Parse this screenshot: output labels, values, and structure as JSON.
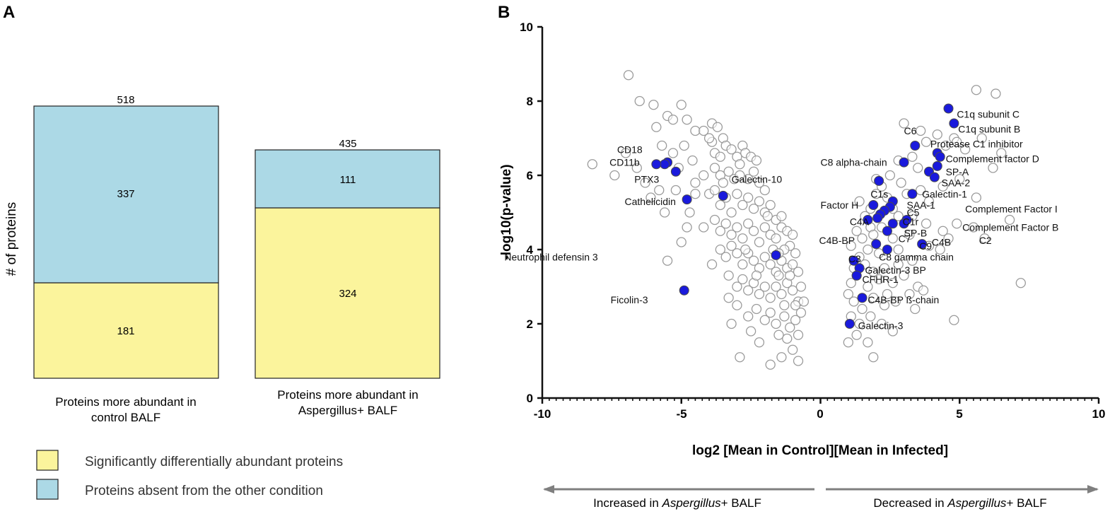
{
  "panel_labels": {
    "a": "A",
    "b": "B"
  },
  "colors": {
    "yellow": "#fbf49c",
    "blue": "#acd9e6",
    "highlight": "#1a1adc",
    "open_marker": "#9a9a9a",
    "arrow": "#7f7f7f"
  },
  "chart_data": [
    {
      "type": "bar",
      "stacked": true,
      "ylabel": "# of proteins",
      "categories": [
        "Proteins more abundant in control BALF",
        "Proteins more abundant in Aspergillus+ BALF"
      ],
      "category_lines": [
        [
          "Proteins more abundant in",
          "control BALF"
        ],
        [
          "Proteins more abundant in",
          "Aspergillus+ BALF"
        ]
      ],
      "series": [
        {
          "name": "Significantly differentially abundant proteins",
          "values": [
            181,
            324
          ],
          "color": "#fbf49c"
        },
        {
          "name": "Proteins absent from the other condition",
          "values": [
            337,
            111
          ],
          "color": "#acd9e6"
        }
      ],
      "totals": [
        518,
        435
      ],
      "ylim": [
        0,
        600
      ],
      "legend_position": "bottom-left"
    },
    {
      "type": "scatter",
      "xlabel": "log2 [Mean in Control][Mean in Infected]",
      "ylabel": "-log10(p-value)",
      "xlim": [
        -10,
        10
      ],
      "ylim": [
        0,
        10
      ],
      "xticks": [
        -10,
        -5,
        0,
        5,
        10
      ],
      "yticks": [
        0,
        2,
        4,
        6,
        8,
        10
      ],
      "annotations": {
        "left_arrow": {
          "prefix": "Increased in ",
          "italic": "Aspergillus",
          "suffix": "+ BALF"
        },
        "right_arrow": {
          "prefix": "Decreased in ",
          "italic": "Aspergillus",
          "suffix": "+ BALF"
        }
      },
      "highlighted": [
        {
          "x": 4.6,
          "y": 7.8,
          "label": "C1q  subunit C",
          "lx": 4.9,
          "ly": 7.65
        },
        {
          "x": 4.8,
          "y": 7.4,
          "label": "C1q subunit B",
          "lx": 4.95,
          "ly": 7.25
        },
        {
          "x": 3.4,
          "y": 6.8,
          "label": "C6",
          "lx": 3.0,
          "ly": 7.2
        },
        {
          "x": 4.2,
          "y": 6.6,
          "label": "Protease C1 inhibitor",
          "lx": 3.95,
          "ly": 6.85
        },
        {
          "x": 4.3,
          "y": 6.5,
          "label": "Complement factor D",
          "lx": 4.5,
          "ly": 6.45
        },
        {
          "x": 3.0,
          "y": 6.35,
          "label": "C8 alpha-chain",
          "lx": 0.0,
          "ly": 6.35
        },
        {
          "x": 4.2,
          "y": 6.25,
          "label": "SP-A",
          "lx": 4.5,
          "ly": 6.1
        },
        {
          "x": 3.9,
          "y": 6.1,
          "label": "SAA-2",
          "lx": 4.35,
          "ly": 5.8
        },
        {
          "x": 4.1,
          "y": 5.95,
          "label": "",
          "lx": 0,
          "ly": 0
        },
        {
          "x": 2.1,
          "y": 5.85,
          "label": "",
          "lx": 0,
          "ly": 0
        },
        {
          "x": 3.3,
          "y": 5.5,
          "label": "Galectin-1",
          "lx": 3.65,
          "ly": 5.5
        },
        {
          "x": 2.6,
          "y": 5.3,
          "label": "SAA-1",
          "lx": 3.1,
          "ly": 5.2
        },
        {
          "x": 2.5,
          "y": 5.15,
          "label": "C1s",
          "lx": 1.8,
          "ly": 5.5
        },
        {
          "x": 1.9,
          "y": 5.2,
          "label": "Factor H",
          "lx": 0.0,
          "ly": 5.2
        },
        {
          "x": 2.3,
          "y": 5.05,
          "label": "C5",
          "lx": 3.1,
          "ly": 5.0
        },
        {
          "x": 2.15,
          "y": 4.95,
          "label": "",
          "lx": 0,
          "ly": 0
        },
        {
          "x": 2.05,
          "y": 4.85,
          "label": "",
          "lx": 0,
          "ly": 0
        },
        {
          "x": 1.7,
          "y": 4.8,
          "label": "C4A",
          "lx": 1.05,
          "ly": 4.75
        },
        {
          "x": 3.1,
          "y": 4.8,
          "label": "C1r",
          "lx": 2.95,
          "ly": 4.75
        },
        {
          "x": 2.6,
          "y": 4.7,
          "label": "SP-B",
          "lx": 3.0,
          "ly": 4.45
        },
        {
          "x": 3.0,
          "y": 4.7,
          "label": "",
          "lx": 0,
          "ly": 0
        },
        {
          "x": 2.4,
          "y": 4.5,
          "label": "C7",
          "lx": 2.8,
          "ly": 4.3
        },
        {
          "x": 2.0,
          "y": 4.15,
          "label": "C4B-BP",
          "lx": -0.05,
          "ly": 4.25
        },
        {
          "x": 3.65,
          "y": 4.15,
          "label": "C9",
          "lx": 3.55,
          "ly": 4.1
        },
        {
          "x": 2.4,
          "y": 4.0,
          "label": "C8 gamma chain",
          "lx": 2.1,
          "ly": 3.8
        },
        {
          "x": 1.2,
          "y": 3.7,
          "label": "C3",
          "lx": 1.0,
          "ly": 3.75
        },
        {
          "x": 1.4,
          "y": 3.5,
          "label": "Galectin-3 BP",
          "lx": 1.6,
          "ly": 3.45
        },
        {
          "x": 1.3,
          "y": 3.3,
          "label": "CFHR-1",
          "lx": 1.5,
          "ly": 3.2
        },
        {
          "x": 1.5,
          "y": 2.7,
          "label": "C4B-BP ß-chain",
          "lx": 1.7,
          "ly": 2.65
        },
        {
          "x": 1.05,
          "y": 2.0,
          "label": "Galectin-3",
          "lx": 1.35,
          "ly": 1.95
        },
        {
          "x": -5.5,
          "y": 6.35,
          "label": "CD18",
          "lx": -6.4,
          "ly": 6.7
        },
        {
          "x": -5.6,
          "y": 6.3,
          "label": "CD11b",
          "lx": -6.5,
          "ly": 6.35
        },
        {
          "x": -5.2,
          "y": 6.1,
          "label": "PTX3",
          "lx": -5.8,
          "ly": 5.9
        },
        {
          "x": -5.9,
          "y": 6.3,
          "label": "",
          "lx": 0,
          "ly": 0
        },
        {
          "x": -3.5,
          "y": 5.45,
          "label": "Galectin-10",
          "lx": -3.2,
          "ly": 5.9
        },
        {
          "x": -4.8,
          "y": 5.35,
          "label": "Cathelicidin",
          "lx": -5.2,
          "ly": 5.3
        },
        {
          "x": -1.6,
          "y": 3.85,
          "label": "Neutrophil defensin 3",
          "lx": -8.0,
          "ly": 3.8
        },
        {
          "x": -4.9,
          "y": 2.9,
          "label": "Ficolin-3",
          "lx": -6.2,
          "ly": 2.65
        }
      ],
      "extra_labels": [
        {
          "label": "Complement Factor I",
          "lx": 5.2,
          "ly": 5.1
        },
        {
          "label": "Complement Factor B",
          "lx": 5.1,
          "ly": 4.6
        },
        {
          "label": "C4B",
          "lx": 4.0,
          "ly": 4.2
        },
        {
          "label": "C2",
          "lx": 5.7,
          "ly": 4.25
        }
      ],
      "points_left": [
        [
          -6.9,
          8.7
        ],
        [
          -8.2,
          6.3
        ],
        [
          -7.0,
          6.6
        ],
        [
          -6.5,
          8.0
        ],
        [
          -6.0,
          7.9
        ],
        [
          -5.9,
          7.3
        ],
        [
          -5.7,
          6.8
        ],
        [
          -5.5,
          7.6
        ],
        [
          -5.3,
          7.5
        ],
        [
          -5.0,
          7.9
        ],
        [
          -4.8,
          7.5
        ],
        [
          -4.5,
          7.2
        ],
        [
          -4.2,
          7.2
        ],
        [
          -3.9,
          7.4
        ],
        [
          -3.5,
          7.0
        ],
        [
          -6.3,
          5.8
        ],
        [
          -6.1,
          5.4
        ],
        [
          -5.8,
          5.6
        ],
        [
          -5.6,
          5.0
        ],
        [
          -5.3,
          6.6
        ],
        [
          -5.1,
          6.2
        ],
        [
          -4.9,
          6.8
        ],
        [
          -4.6,
          6.4
        ],
        [
          -4.7,
          5.0
        ],
        [
          -4.5,
          5.8
        ],
        [
          -4.2,
          6.0
        ],
        [
          -4.0,
          5.5
        ],
        [
          -5.0,
          4.2
        ],
        [
          -5.5,
          3.7
        ],
        [
          -4.8,
          4.6
        ],
        [
          -3.9,
          6.9
        ],
        [
          -3.8,
          6.6
        ],
        [
          -3.6,
          6.5
        ],
        [
          -3.4,
          6.8
        ],
        [
          -3.2,
          6.7
        ],
        [
          -3.0,
          6.5
        ],
        [
          -2.8,
          6.8
        ],
        [
          -2.7,
          6.6
        ],
        [
          -2.5,
          6.5
        ],
        [
          -2.3,
          6.4
        ],
        [
          -3.8,
          6.2
        ],
        [
          -3.6,
          6.0
        ],
        [
          -3.5,
          5.8
        ],
        [
          -3.3,
          6.1
        ],
        [
          -3.1,
          5.9
        ],
        [
          -2.9,
          6.0
        ],
        [
          -2.6,
          5.9
        ],
        [
          -2.4,
          6.1
        ],
        [
          -2.2,
          5.8
        ],
        [
          -2.0,
          5.6
        ],
        [
          -3.8,
          5.6
        ],
        [
          -3.6,
          5.2
        ],
        [
          -3.4,
          5.4
        ],
        [
          -3.2,
          5.0
        ],
        [
          -3.0,
          5.5
        ],
        [
          -2.8,
          5.2
        ],
        [
          -2.6,
          5.4
        ],
        [
          -2.4,
          5.1
        ],
        [
          -2.2,
          5.3
        ],
        [
          -2.0,
          5.0
        ],
        [
          -1.8,
          5.2
        ],
        [
          -1.6,
          4.8
        ],
        [
          -1.4,
          4.9
        ],
        [
          -3.8,
          4.8
        ],
        [
          -3.6,
          4.5
        ],
        [
          -3.4,
          4.7
        ],
        [
          -3.2,
          4.4
        ],
        [
          -3.0,
          4.6
        ],
        [
          -2.8,
          4.3
        ],
        [
          -2.6,
          4.7
        ],
        [
          -2.4,
          4.5
        ],
        [
          -2.2,
          4.2
        ],
        [
          -2.0,
          4.6
        ],
        [
          -1.8,
          4.4
        ],
        [
          -1.6,
          4.3
        ],
        [
          -1.4,
          4.6
        ],
        [
          -1.2,
          4.5
        ],
        [
          -1.0,
          4.4
        ],
        [
          -3.6,
          4.0
        ],
        [
          -3.4,
          3.8
        ],
        [
          -3.2,
          4.1
        ],
        [
          -3.0,
          3.9
        ],
        [
          -2.8,
          3.6
        ],
        [
          -2.6,
          3.9
        ],
        [
          -2.4,
          3.7
        ],
        [
          -2.2,
          3.5
        ],
        [
          -2.0,
          3.8
        ],
        [
          -1.8,
          3.6
        ],
        [
          -1.6,
          3.4
        ],
        [
          -1.4,
          3.7
        ],
        [
          -1.2,
          3.5
        ],
        [
          -1.0,
          3.6
        ],
        [
          -0.8,
          3.4
        ],
        [
          -0.9,
          3.9
        ],
        [
          -1.1,
          4.1
        ],
        [
          -1.3,
          4.0
        ],
        [
          -3.3,
          3.3
        ],
        [
          -3.0,
          3.0
        ],
        [
          -2.8,
          3.2
        ],
        [
          -2.6,
          2.9
        ],
        [
          -2.4,
          3.1
        ],
        [
          -2.2,
          2.8
        ],
        [
          -2.0,
          3.0
        ],
        [
          -1.8,
          2.7
        ],
        [
          -1.6,
          3.0
        ],
        [
          -1.4,
          2.8
        ],
        [
          -1.2,
          3.1
        ],
        [
          -1.0,
          2.9
        ],
        [
          -0.8,
          2.6
        ],
        [
          -0.7,
          3.0
        ],
        [
          -1.5,
          3.3
        ],
        [
          -1.1,
          3.3
        ],
        [
          -3.0,
          2.5
        ],
        [
          -2.6,
          2.2
        ],
        [
          -2.3,
          2.4
        ],
        [
          -2.0,
          2.1
        ],
        [
          -1.8,
          2.3
        ],
        [
          -1.6,
          2.0
        ],
        [
          -1.3,
          2.2
        ],
        [
          -1.1,
          1.9
        ],
        [
          -0.9,
          2.1
        ],
        [
          -0.7,
          2.3
        ],
        [
          -0.8,
          1.7
        ],
        [
          -1.2,
          1.6
        ],
        [
          -1.5,
          1.7
        ],
        [
          -2.2,
          1.5
        ],
        [
          -2.5,
          1.8
        ],
        [
          -3.2,
          2.0
        ],
        [
          -1.0,
          1.3
        ],
        [
          -1.4,
          1.1
        ],
        [
          -1.8,
          0.9
        ],
        [
          -0.8,
          1.0
        ],
        [
          -2.9,
          1.1
        ],
        [
          -4.2,
          4.6
        ],
        [
          -4.5,
          5.5
        ],
        [
          -5.2,
          5.6
        ],
        [
          -6.6,
          6.2
        ],
        [
          -7.4,
          6.0
        ],
        [
          -3.9,
          3.6
        ],
        [
          -3.3,
          2.7
        ],
        [
          -4.0,
          7.0
        ],
        [
          -3.7,
          7.3
        ],
        [
          -2.9,
          6.3
        ],
        [
          -1.9,
          4.9
        ],
        [
          -1.7,
          4.0
        ],
        [
          -1.5,
          3.9
        ],
        [
          -2.7,
          4.0
        ],
        [
          -2.3,
          3.3
        ],
        [
          -1.3,
          2.5
        ],
        [
          -0.9,
          2.5
        ],
        [
          -0.6,
          2.6
        ]
      ],
      "points_right": [
        [
          5.6,
          8.3
        ],
        [
          6.3,
          8.2
        ],
        [
          5.8,
          7.0
        ],
        [
          6.5,
          6.6
        ],
        [
          6.2,
          6.2
        ],
        [
          4.8,
          7.0
        ],
        [
          4.2,
          7.1
        ],
        [
          3.6,
          7.2
        ],
        [
          3.0,
          7.4
        ],
        [
          5.2,
          6.7
        ],
        [
          4.9,
          6.9
        ],
        [
          4.5,
          6.8
        ],
        [
          3.8,
          6.9
        ],
        [
          3.3,
          6.5
        ],
        [
          2.8,
          6.4
        ],
        [
          3.5,
          6.2
        ],
        [
          2.5,
          6.0
        ],
        [
          2.2,
          5.7
        ],
        [
          2.9,
          5.8
        ],
        [
          3.6,
          5.6
        ],
        [
          2.0,
          5.5
        ],
        [
          2.4,
          5.4
        ],
        [
          1.8,
          5.1
        ],
        [
          2.6,
          5.1
        ],
        [
          3.1,
          5.5
        ],
        [
          3.9,
          5.3
        ],
        [
          4.4,
          5.7
        ],
        [
          5.0,
          5.9
        ],
        [
          5.6,
          5.4
        ],
        [
          1.6,
          4.9
        ],
        [
          1.8,
          4.6
        ],
        [
          2.2,
          4.6
        ],
        [
          2.8,
          4.9
        ],
        [
          3.3,
          4.9
        ],
        [
          3.8,
          4.7
        ],
        [
          4.4,
          4.5
        ],
        [
          4.9,
          4.7
        ],
        [
          1.5,
          4.3
        ],
        [
          1.9,
          4.4
        ],
        [
          2.6,
          4.3
        ],
        [
          3.2,
          4.4
        ],
        [
          3.9,
          4.1
        ],
        [
          1.7,
          4.0
        ],
        [
          2.1,
          3.9
        ],
        [
          2.8,
          4.0
        ],
        [
          1.2,
          3.5
        ],
        [
          1.4,
          3.8
        ],
        [
          1.6,
          3.6
        ],
        [
          1.9,
          3.4
        ],
        [
          2.3,
          3.5
        ],
        [
          2.8,
          3.6
        ],
        [
          3.3,
          3.7
        ],
        [
          1.1,
          3.1
        ],
        [
          1.3,
          3.3
        ],
        [
          1.7,
          3.0
        ],
        [
          2.1,
          3.2
        ],
        [
          2.6,
          3.1
        ],
        [
          3.0,
          3.3
        ],
        [
          3.5,
          3.0
        ],
        [
          1.0,
          2.8
        ],
        [
          1.2,
          2.6
        ],
        [
          1.5,
          2.4
        ],
        [
          1.9,
          2.7
        ],
        [
          2.3,
          2.5
        ],
        [
          2.7,
          2.6
        ],
        [
          3.2,
          2.8
        ],
        [
          3.7,
          2.9
        ],
        [
          1.1,
          2.2
        ],
        [
          1.4,
          2.0
        ],
        [
          1.8,
          2.2
        ],
        [
          2.2,
          2.0
        ],
        [
          2.6,
          1.8
        ],
        [
          1.3,
          1.7
        ],
        [
          1.7,
          1.5
        ],
        [
          1.0,
          1.5
        ],
        [
          1.9,
          1.1
        ],
        [
          4.8,
          2.1
        ],
        [
          7.2,
          3.1
        ],
        [
          6.8,
          4.8
        ],
        [
          5.9,
          4.3
        ],
        [
          5.5,
          4.6
        ],
        [
          4.6,
          4.3
        ],
        [
          4.3,
          4.0
        ],
        [
          1.3,
          4.5
        ],
        [
          1.1,
          4.1
        ],
        [
          2.4,
          2.8
        ],
        [
          3.4,
          2.4
        ],
        [
          2.0,
          5.9
        ],
        [
          1.4,
          5.3
        ]
      ]
    }
  ]
}
